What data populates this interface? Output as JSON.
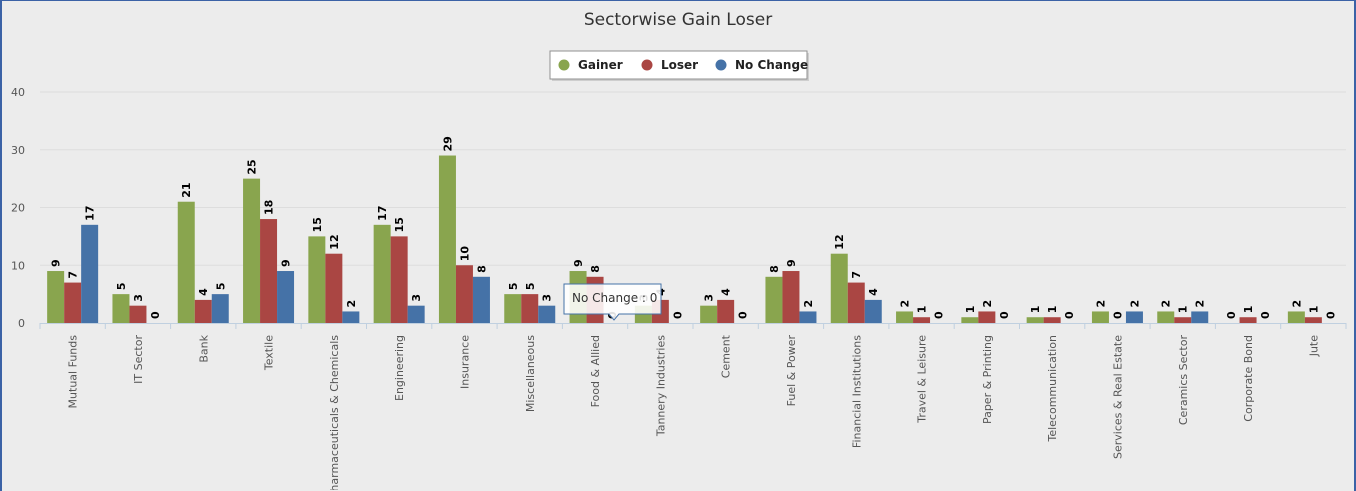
{
  "chart_data": {
    "type": "bar",
    "title": "Sectorwise Gain Loser",
    "categories": [
      "Mutual Funds",
      "IT Sector",
      "Bank",
      "Textile",
      "Pharmaceuticals & Chemicals",
      "Engineering",
      "Insurance",
      "Miscellaneous",
      "Food & Allied",
      "Tannery Industries",
      "Cement",
      "Fuel & Power",
      "Financial Institutions",
      "Travel & Leisure",
      "Paper & Printing",
      "Telecommunication",
      "Services & Real Estate",
      "Ceramics Sector",
      "Corporate Bond",
      "Jute"
    ],
    "series": [
      {
        "name": "Gainer",
        "color": "#89a54e",
        "values": [
          9,
          5,
          21,
          25,
          15,
          17,
          29,
          5,
          9,
          3,
          3,
          8,
          12,
          2,
          1,
          1,
          2,
          2,
          0,
          2
        ]
      },
      {
        "name": "Loser",
        "color": "#aa4643",
        "values": [
          7,
          3,
          4,
          18,
          12,
          15,
          10,
          5,
          8,
          4,
          4,
          9,
          7,
          1,
          2,
          1,
          0,
          1,
          1,
          1
        ]
      },
      {
        "name": "No Change",
        "color": "#4572a7",
        "values": [
          17,
          0,
          5,
          9,
          2,
          3,
          8,
          3,
          0,
          0,
          0,
          2,
          4,
          0,
          0,
          0,
          2,
          2,
          0,
          0
        ]
      }
    ],
    "ylim": [
      0,
      40
    ],
    "yticks": [
      0,
      10,
      20,
      30,
      40
    ],
    "grid": true,
    "legend": "top-center",
    "data_labels": true,
    "tooltip": {
      "text": "No Change : 0"
    }
  }
}
